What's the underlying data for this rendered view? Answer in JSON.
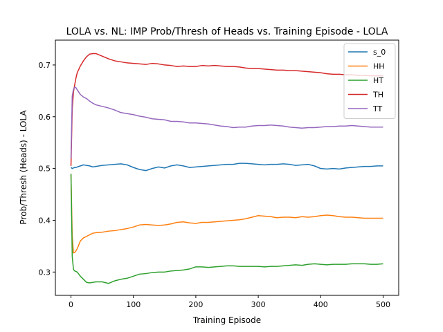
{
  "chart_data": {
    "type": "line",
    "title": "LOLA vs. NL: IMP Prob/Thresh of Heads vs. Training Episode - LOLA",
    "xlabel": "Training Episode",
    "ylabel": "Prob/Thresh (Heads) - LOLA",
    "xlim": [
      -25,
      525
    ],
    "ylim": [
      0.255,
      0.748
    ],
    "xticks": [
      0,
      100,
      200,
      300,
      400,
      500
    ],
    "yticks": [
      0.3,
      0.4,
      0.5,
      0.6,
      0.7
    ],
    "xtick_labels": [
      "0",
      "100",
      "200",
      "300",
      "400",
      "500"
    ],
    "ytick_labels": [
      "0.3",
      "0.4",
      "0.5",
      "0.6",
      "0.7"
    ],
    "grid": false,
    "legend_position": "top-right",
    "x": [
      0,
      2,
      4,
      6,
      8,
      10,
      15,
      20,
      25,
      30,
      35,
      40,
      50,
      60,
      70,
      80,
      90,
      100,
      110,
      120,
      130,
      140,
      150,
      160,
      170,
      180,
      190,
      200,
      210,
      220,
      230,
      240,
      250,
      260,
      270,
      280,
      290,
      300,
      310,
      320,
      330,
      340,
      350,
      360,
      370,
      380,
      390,
      400,
      410,
      420,
      430,
      440,
      450,
      460,
      470,
      480,
      490,
      500
    ],
    "series": [
      {
        "name": "s_0",
        "color": "#1f77b4",
        "values": [
          0.502,
          0.5,
          0.501,
          0.502,
          0.502,
          0.503,
          0.505,
          0.507,
          0.506,
          0.505,
          0.503,
          0.504,
          0.506,
          0.507,
          0.508,
          0.509,
          0.507,
          0.502,
          0.498,
          0.496,
          0.5,
          0.503,
          0.501,
          0.505,
          0.507,
          0.505,
          0.502,
          0.503,
          0.504,
          0.505,
          0.506,
          0.507,
          0.508,
          0.508,
          0.51,
          0.51,
          0.509,
          0.508,
          0.507,
          0.508,
          0.508,
          0.509,
          0.508,
          0.506,
          0.507,
          0.508,
          0.505,
          0.5,
          0.499,
          0.5,
          0.499,
          0.501,
          0.502,
          0.503,
          0.504,
          0.504,
          0.505,
          0.505
        ]
      },
      {
        "name": "HH",
        "color": "#ff7f0e",
        "values": [
          0.488,
          0.37,
          0.337,
          0.338,
          0.341,
          0.345,
          0.36,
          0.366,
          0.369,
          0.372,
          0.375,
          0.376,
          0.377,
          0.379,
          0.38,
          0.382,
          0.384,
          0.387,
          0.391,
          0.392,
          0.391,
          0.39,
          0.391,
          0.393,
          0.396,
          0.397,
          0.395,
          0.394,
          0.396,
          0.396,
          0.397,
          0.398,
          0.399,
          0.4,
          0.401,
          0.403,
          0.406,
          0.409,
          0.408,
          0.407,
          0.405,
          0.406,
          0.406,
          0.405,
          0.407,
          0.406,
          0.407,
          0.409,
          0.41,
          0.409,
          0.407,
          0.406,
          0.406,
          0.405,
          0.404,
          0.404,
          0.404,
          0.404
        ]
      },
      {
        "name": "HT",
        "color": "#2ca02c",
        "values": [
          0.49,
          0.33,
          0.305,
          0.302,
          0.301,
          0.3,
          0.292,
          0.286,
          0.28,
          0.279,
          0.28,
          0.281,
          0.281,
          0.278,
          0.283,
          0.286,
          0.288,
          0.292,
          0.296,
          0.297,
          0.299,
          0.3,
          0.3,
          0.302,
          0.303,
          0.304,
          0.306,
          0.31,
          0.31,
          0.309,
          0.31,
          0.311,
          0.312,
          0.312,
          0.311,
          0.311,
          0.311,
          0.311,
          0.31,
          0.311,
          0.311,
          0.312,
          0.313,
          0.314,
          0.313,
          0.315,
          0.316,
          0.315,
          0.314,
          0.315,
          0.315,
          0.315,
          0.316,
          0.316,
          0.316,
          0.315,
          0.315,
          0.316
        ]
      },
      {
        "name": "TH",
        "color": "#d62728",
        "values": [
          0.505,
          0.615,
          0.648,
          0.662,
          0.675,
          0.685,
          0.698,
          0.708,
          0.716,
          0.721,
          0.722,
          0.722,
          0.717,
          0.712,
          0.708,
          0.706,
          0.704,
          0.703,
          0.702,
          0.701,
          0.703,
          0.702,
          0.7,
          0.699,
          0.697,
          0.698,
          0.697,
          0.697,
          0.699,
          0.698,
          0.699,
          0.698,
          0.697,
          0.697,
          0.696,
          0.694,
          0.693,
          0.693,
          0.692,
          0.691,
          0.69,
          0.69,
          0.689,
          0.689,
          0.688,
          0.687,
          0.686,
          0.685,
          0.683,
          0.682,
          0.682,
          0.681,
          0.681,
          0.68,
          0.68,
          0.679,
          0.679,
          0.679
        ]
      },
      {
        "name": "TT",
        "color": "#9467bd",
        "values": [
          0.52,
          0.64,
          0.653,
          0.657,
          0.656,
          0.652,
          0.643,
          0.638,
          0.635,
          0.63,
          0.626,
          0.623,
          0.62,
          0.617,
          0.613,
          0.608,
          0.606,
          0.604,
          0.601,
          0.599,
          0.596,
          0.595,
          0.594,
          0.591,
          0.591,
          0.59,
          0.588,
          0.588,
          0.587,
          0.586,
          0.584,
          0.582,
          0.581,
          0.579,
          0.58,
          0.58,
          0.582,
          0.583,
          0.583,
          0.584,
          0.583,
          0.582,
          0.58,
          0.579,
          0.578,
          0.579,
          0.579,
          0.58,
          0.581,
          0.581,
          0.582,
          0.582,
          0.583,
          0.582,
          0.581,
          0.58,
          0.58,
          0.58
        ]
      }
    ]
  }
}
